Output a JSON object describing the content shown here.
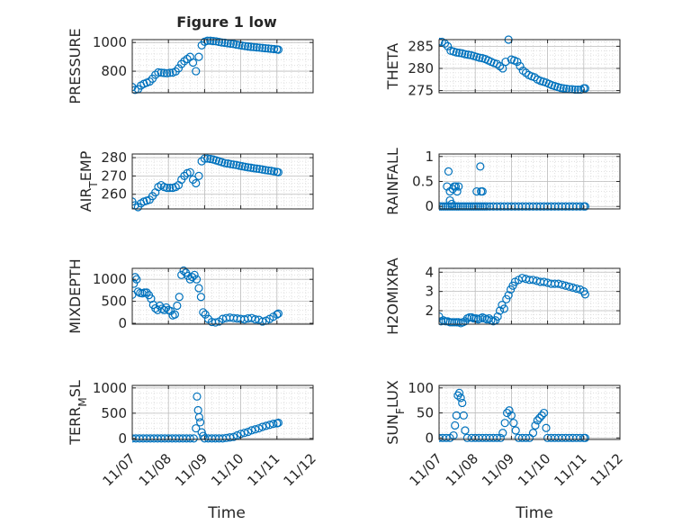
{
  "figure": {
    "title": "Figure 1 low",
    "xlabel": "Time",
    "xticks": [
      "11/07",
      "11/08",
      "11/09",
      "11/10",
      "11/11",
      "11/12"
    ]
  },
  "chart_data": [
    {
      "type": "scatter",
      "ylabel": "PRESSURE",
      "yticks": [
        800,
        1000
      ],
      "ylim": [
        650,
        1020
      ],
      "xlim": [
        0,
        5
      ],
      "grid": true,
      "marker": "circle",
      "color": "#0072BD",
      "x": [
        0.0,
        0.08,
        0.16,
        0.24,
        0.32,
        0.4,
        0.48,
        0.56,
        0.64,
        0.72,
        0.8,
        0.88,
        0.96,
        1.04,
        1.12,
        1.2,
        1.28,
        1.36,
        1.44,
        1.52,
        1.6,
        1.68,
        1.76,
        1.84,
        1.92,
        2.0,
        2.08,
        2.16,
        2.24,
        2.32,
        2.4,
        2.48,
        2.56,
        2.64,
        2.72,
        2.8,
        2.88,
        2.96,
        3.04,
        3.12,
        3.2,
        3.28,
        3.36,
        3.44,
        3.52,
        3.6,
        3.68,
        3.76,
        3.84,
        3.92,
        4.0,
        4.04
      ],
      "y": [
        690,
        670,
        675,
        700,
        712,
        720,
        728,
        748,
        775,
        792,
        790,
        788,
        786,
        789,
        790,
        798,
        820,
        850,
        870,
        885,
        900,
        860,
        800,
        900,
        980,
        1005,
        1012,
        1012,
        1010,
        1008,
        1004,
        1000,
        998,
        995,
        992,
        990,
        985,
        982,
        978,
        975,
        972,
        970,
        968,
        966,
        964,
        962,
        960,
        958,
        956,
        954,
        952,
        950
      ]
    },
    {
      "type": "scatter",
      "ylabel": "THETA",
      "yticks": [
        275,
        280,
        285
      ],
      "ylim": [
        274.5,
        286.5
      ],
      "xlim": [
        0,
        5
      ],
      "grid": true,
      "marker": "circle",
      "color": "#0072BD",
      "x": [
        0.0,
        0.08,
        0.16,
        0.24,
        0.32,
        0.4,
        0.48,
        0.56,
        0.64,
        0.72,
        0.8,
        0.88,
        0.96,
        1.04,
        1.12,
        1.2,
        1.28,
        1.36,
        1.44,
        1.52,
        1.6,
        1.68,
        1.76,
        1.84,
        1.92,
        2.0,
        2.08,
        2.16,
        2.24,
        2.32,
        2.4,
        2.48,
        2.56,
        2.64,
        2.72,
        2.8,
        2.88,
        2.96,
        3.04,
        3.12,
        3.2,
        3.28,
        3.36,
        3.44,
        3.52,
        3.6,
        3.68,
        3.76,
        3.84,
        3.92,
        4.0,
        4.04
      ],
      "y": [
        286.0,
        286.0,
        285.6,
        285.0,
        284.0,
        283.8,
        283.6,
        283.5,
        283.4,
        283.2,
        283.1,
        283.0,
        282.8,
        282.6,
        282.4,
        282.3,
        282.1,
        281.8,
        281.5,
        281.2,
        281.0,
        280.5,
        280.0,
        281.5,
        286.5,
        282.0,
        281.8,
        281.5,
        280.5,
        279.5,
        279.0,
        278.5,
        278.2,
        278.0,
        277.5,
        277.2,
        277.0,
        276.8,
        276.5,
        276.2,
        276.0,
        275.8,
        275.6,
        275.5,
        275.4,
        275.3,
        275.3,
        275.2,
        275.2,
        275.2,
        275.5,
        275.5
      ]
    },
    {
      "type": "scatter",
      "ylabel": "AIR_TEMP",
      "yticks": [
        260,
        270,
        280
      ],
      "ylim": [
        252,
        282
      ],
      "xlim": [
        0,
        5
      ],
      "grid": true,
      "marker": "circle",
      "color": "#0072BD",
      "x": [
        0.0,
        0.08,
        0.16,
        0.24,
        0.32,
        0.4,
        0.48,
        0.56,
        0.64,
        0.72,
        0.8,
        0.88,
        0.96,
        1.04,
        1.12,
        1.2,
        1.28,
        1.36,
        1.44,
        1.52,
        1.6,
        1.68,
        1.76,
        1.84,
        1.92,
        2.0,
        2.08,
        2.16,
        2.24,
        2.32,
        2.4,
        2.48,
        2.56,
        2.64,
        2.72,
        2.8,
        2.88,
        2.96,
        3.04,
        3.12,
        3.2,
        3.28,
        3.36,
        3.44,
        3.52,
        3.6,
        3.68,
        3.76,
        3.84,
        3.92,
        4.0,
        4.04
      ],
      "y": [
        256,
        254,
        253,
        255,
        256,
        256.5,
        257,
        259,
        261,
        264,
        265,
        264,
        263.5,
        263.5,
        263.5,
        264,
        265,
        268,
        270,
        271.5,
        272,
        268,
        266,
        270,
        278,
        279.5,
        279.5,
        279.3,
        279,
        278.5,
        278,
        277.5,
        277,
        276.8,
        276.5,
        276.2,
        276,
        275.6,
        275.3,
        275,
        274.7,
        274.5,
        274.2,
        274,
        273.8,
        273.5,
        273.2,
        273,
        272.8,
        272.5,
        272.2,
        272
      ]
    },
    {
      "type": "scatter",
      "ylabel": "RAINFALL",
      "yticks": [
        0,
        0.5,
        1
      ],
      "ylim": [
        -0.05,
        1.05
      ],
      "xlim": [
        0,
        5
      ],
      "grid": true,
      "marker": "circle",
      "color": "#0072BD",
      "x": [
        0.0,
        0.06,
        0.12,
        0.18,
        0.24,
        0.3,
        0.36,
        0.42,
        0.48,
        0.54,
        0.6,
        0.66,
        0.72,
        0.78,
        0.84,
        0.9,
        0.96,
        1.02,
        1.08,
        1.14,
        1.2,
        1.26,
        0.22,
        0.26,
        0.3,
        0.38,
        0.42,
        0.46,
        0.5,
        0.54,
        0.3,
        0.35,
        1.04,
        1.14,
        1.2,
        1.16,
        1.32,
        1.4,
        1.5,
        1.6,
        1.7,
        1.8,
        1.9,
        2.0,
        2.1,
        2.2,
        2.3,
        2.4,
        2.5,
        2.6,
        2.7,
        2.8,
        2.9,
        3.0,
        3.1,
        3.2,
        3.3,
        3.4,
        3.5,
        3.6,
        3.7,
        3.8,
        3.9,
        4.0,
        4.04
      ],
      "y": [
        0,
        0,
        0,
        0,
        0,
        0,
        0,
        0,
        0,
        0,
        0,
        0,
        0,
        0,
        0,
        0,
        0,
        0,
        0,
        0,
        0,
        0,
        0.4,
        0.7,
        0.3,
        0.35,
        0.4,
        0.4,
        0.3,
        0.4,
        0.12,
        0.05,
        0.3,
        0.8,
        0.3,
        0.3,
        0,
        0,
        0,
        0,
        0,
        0,
        0,
        0,
        0,
        0,
        0,
        0,
        0,
        0,
        0,
        0,
        0,
        0,
        0,
        0,
        0,
        0,
        0,
        0,
        0,
        0,
        0,
        0,
        0
      ]
    },
    {
      "type": "scatter",
      "ylabel": "MIXDEPTH",
      "yticks": [
        0,
        500,
        1000
      ],
      "ylim": [
        -20,
        1250
      ],
      "xlim": [
        0,
        5
      ],
      "grid": true,
      "marker": "circle",
      "color": "#0072BD",
      "x": [
        0.0,
        0.04,
        0.08,
        0.12,
        0.16,
        0.22,
        0.28,
        0.34,
        0.4,
        0.46,
        0.52,
        0.58,
        0.64,
        0.7,
        0.76,
        0.82,
        0.88,
        0.94,
        1.0,
        1.06,
        1.12,
        1.18,
        1.24,
        1.3,
        1.36,
        1.42,
        1.48,
        1.54,
        1.6,
        1.66,
        1.72,
        1.78,
        1.84,
        1.9,
        1.96,
        2.02,
        2.1,
        2.2,
        2.3,
        2.4,
        2.5,
        2.6,
        2.7,
        2.8,
        2.9,
        3.0,
        3.1,
        3.2,
        3.3,
        3.4,
        3.5,
        3.6,
        3.7,
        3.8,
        3.9,
        4.0,
        4.04
      ],
      "y": [
        650,
        900,
        1050,
        1000,
        720,
        690,
        680,
        700,
        700,
        640,
        560,
        420,
        340,
        300,
        400,
        330,
        300,
        360,
        300,
        280,
        180,
        200,
        400,
        600,
        1100,
        1200,
        1150,
        1080,
        1000,
        1050,
        1100,
        1000,
        800,
        600,
        250,
        200,
        100,
        30,
        20,
        40,
        100,
        120,
        130,
        120,
        110,
        100,
        90,
        110,
        120,
        90,
        80,
        40,
        60,
        100,
        150,
        200,
        220
      ]
    },
    {
      "type": "scatter",
      "ylabel": "H2OMIXRA",
      "yticks": [
        2,
        3,
        4
      ],
      "ylim": [
        1.3,
        4.2
      ],
      "xlim": [
        0,
        5
      ],
      "grid": true,
      "marker": "circle",
      "color": "#0072BD",
      "x": [
        0.0,
        0.06,
        0.12,
        0.18,
        0.24,
        0.3,
        0.36,
        0.42,
        0.48,
        0.54,
        0.6,
        0.66,
        0.72,
        0.78,
        0.84,
        0.9,
        0.96,
        1.02,
        1.08,
        1.14,
        1.2,
        1.26,
        1.32,
        1.38,
        1.44,
        1.5,
        1.56,
        1.62,
        1.68,
        1.74,
        1.8,
        1.86,
        1.92,
        1.98,
        2.04,
        2.1,
        2.2,
        2.3,
        2.4,
        2.5,
        2.6,
        2.7,
        2.8,
        2.9,
        3.0,
        3.1,
        3.2,
        3.3,
        3.4,
        3.5,
        3.6,
        3.7,
        3.8,
        3.9,
        4.0,
        4.04
      ],
      "y": [
        1.7,
        1.45,
        1.5,
        1.45,
        1.45,
        1.4,
        1.4,
        1.4,
        1.4,
        1.4,
        1.35,
        1.4,
        1.45,
        1.6,
        1.65,
        1.65,
        1.6,
        1.6,
        1.55,
        1.6,
        1.65,
        1.6,
        1.55,
        1.6,
        1.5,
        1.45,
        1.5,
        1.7,
        2.0,
        2.3,
        2.1,
        2.6,
        2.8,
        3.1,
        3.3,
        3.5,
        3.6,
        3.7,
        3.65,
        3.6,
        3.6,
        3.55,
        3.5,
        3.5,
        3.45,
        3.4,
        3.4,
        3.4,
        3.35,
        3.3,
        3.25,
        3.2,
        3.15,
        3.1,
        3.0,
        2.85
      ]
    },
    {
      "type": "scatter",
      "ylabel": "TERR_MSL",
      "yticks": [
        0,
        500,
        1000
      ],
      "ylim": [
        -20,
        1050
      ],
      "xlim": [
        0,
        5
      ],
      "grid": true,
      "marker": "circle",
      "color": "#0072BD",
      "x": [
        0.0,
        0.1,
        0.2,
        0.3,
        0.4,
        0.5,
        0.6,
        0.7,
        0.8,
        0.9,
        1.0,
        1.1,
        1.2,
        1.3,
        1.4,
        1.5,
        1.6,
        1.7,
        1.76,
        1.79,
        1.82,
        1.85,
        1.88,
        1.92,
        1.96,
        2.0,
        2.1,
        2.2,
        2.3,
        2.4,
        2.5,
        2.6,
        2.7,
        2.8,
        2.9,
        3.0,
        3.1,
        3.2,
        3.3,
        3.4,
        3.5,
        3.6,
        3.7,
        3.8,
        3.9,
        4.0,
        4.04
      ],
      "y": [
        0,
        0,
        0,
        0,
        0,
        0,
        0,
        0,
        0,
        0,
        0,
        0,
        0,
        0,
        0,
        0,
        0,
        0,
        200,
        830,
        560,
        420,
        320,
        120,
        50,
        0,
        0,
        0,
        0,
        0,
        0,
        10,
        20,
        30,
        60,
        90,
        110,
        130,
        160,
        180,
        200,
        230,
        250,
        270,
        290,
        300,
        310
      ]
    },
    {
      "type": "scatter",
      "ylabel": "SUN_FLUX",
      "yticks": [
        0,
        50,
        100
      ],
      "ylim": [
        -3,
        105
      ],
      "xlim": [
        0,
        5
      ],
      "grid": true,
      "marker": "circle",
      "color": "#0072BD",
      "x": [
        0.0,
        0.1,
        0.2,
        0.3,
        0.4,
        0.44,
        0.48,
        0.52,
        0.56,
        0.6,
        0.64,
        0.68,
        0.72,
        0.78,
        0.9,
        1.0,
        1.1,
        1.2,
        1.3,
        1.4,
        1.5,
        1.6,
        1.7,
        1.76,
        1.82,
        1.88,
        1.94,
        2.0,
        2.06,
        2.12,
        2.2,
        2.3,
        2.4,
        2.5,
        2.6,
        2.66,
        2.72,
        2.78,
        2.84,
        2.9,
        2.96,
        3.0,
        3.1,
        3.2,
        3.3,
        3.4,
        3.5,
        3.6,
        3.7,
        3.8,
        3.9,
        4.0,
        4.04
      ],
      "y": [
        0,
        0,
        0,
        0,
        5,
        25,
        45,
        85,
        90,
        80,
        70,
        45,
        15,
        0,
        0,
        0,
        0,
        0,
        0,
        0,
        0,
        0,
        0,
        10,
        30,
        50,
        55,
        45,
        30,
        15,
        0,
        0,
        0,
        0,
        10,
        25,
        35,
        40,
        45,
        50,
        20,
        0,
        0,
        0,
        0,
        0,
        0,
        0,
        0,
        0,
        0,
        0,
        0
      ]
    }
  ]
}
